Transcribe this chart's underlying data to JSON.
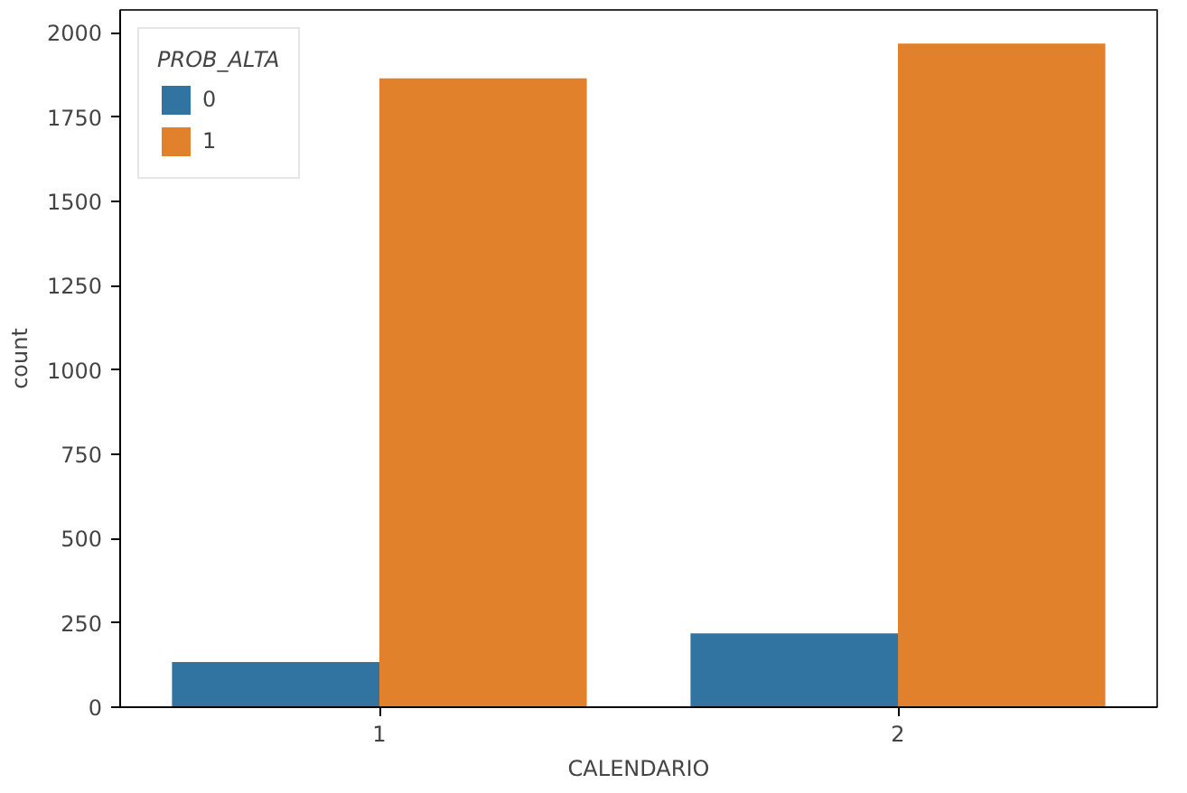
{
  "chart_data": {
    "type": "bar",
    "xlabel": "CALENDARIO",
    "ylabel": "count",
    "legend_title": "PROB_ALTA",
    "categories": [
      "1",
      "2"
    ],
    "series": [
      {
        "name": "0",
        "color": "#3274a1",
        "values": [
          134,
          219
        ]
      },
      {
        "name": "1",
        "color": "#e1812c",
        "values": [
          1865,
          1968
        ]
      }
    ],
    "ylim": [
      0,
      2068
    ],
    "yticks": [
      0,
      250,
      500,
      750,
      1000,
      1250,
      1500,
      1750,
      2000
    ],
    "grid": false,
    "legend": "top left"
  }
}
